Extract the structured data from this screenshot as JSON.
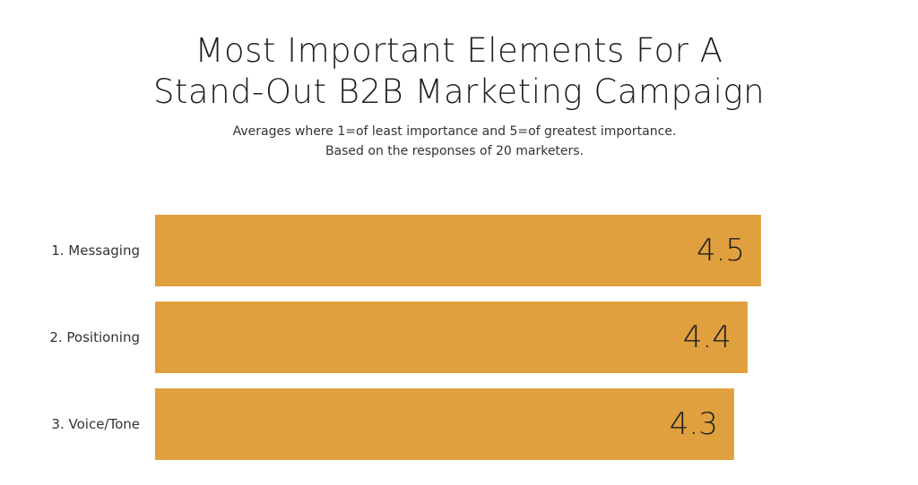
{
  "chart_data": {
    "type": "bar",
    "orientation": "horizontal",
    "title_lines": [
      "Most Important  Elements For A",
      "Stand-Out B2B Marketing Campaign"
    ],
    "subtitle_lines": [
      "Averages where 1=of least importance and 5=of greatest importance.",
      "Based on the responses of 20 marketers."
    ],
    "categories": [
      "1. Messaging",
      "2. Positioning",
      "3. Voice/Tone"
    ],
    "values": [
      4.5,
      4.4,
      4.3
    ],
    "value_labels": [
      "4.5",
      "4.4",
      "4.3"
    ],
    "bar_color": "#e0a03e",
    "grid": false,
    "legend": "none"
  }
}
